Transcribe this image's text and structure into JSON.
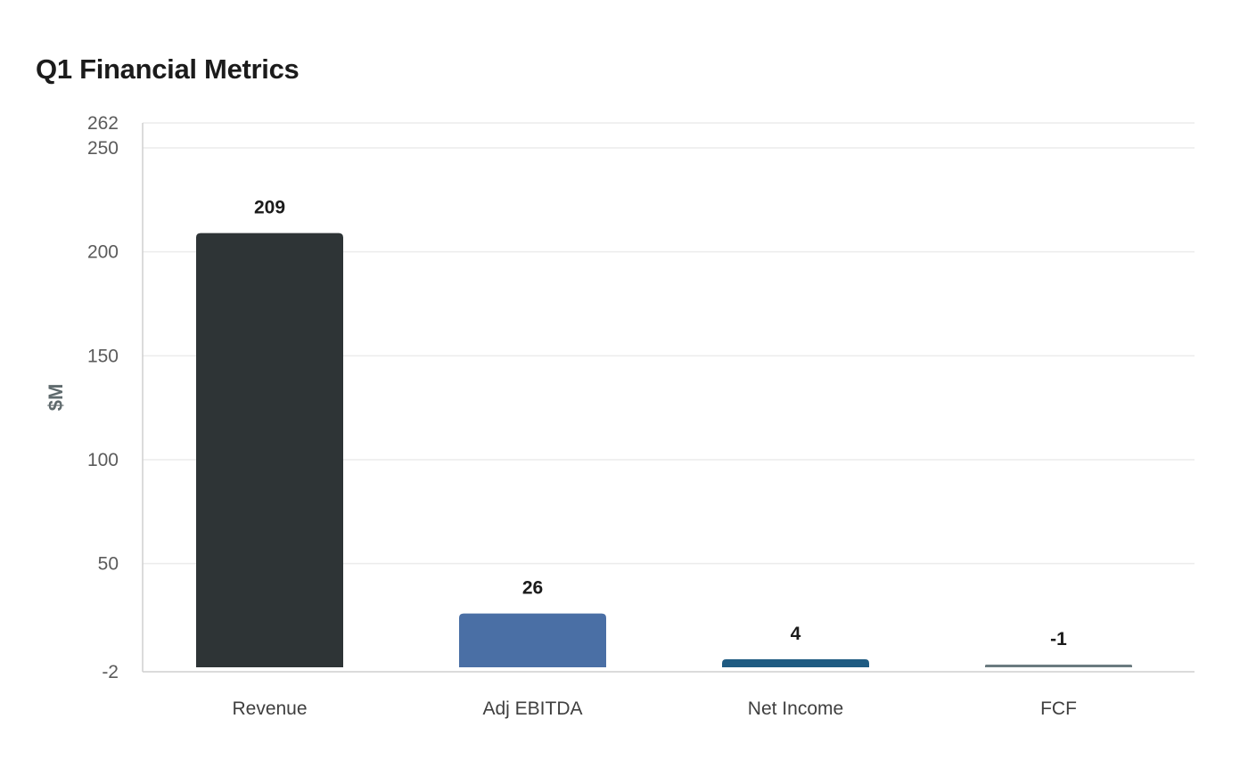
{
  "chart_data": {
    "type": "bar",
    "title": "Q1 Financial Metrics",
    "xlabel": "",
    "ylabel": "$M",
    "categories": [
      "Revenue",
      "Adj EBITDA",
      "Net Income",
      "FCF"
    ],
    "values": [
      209,
      26,
      4,
      -1
    ],
    "data_labels": [
      "209",
      "26",
      "4",
      "-1"
    ],
    "colors": [
      "#2e3436",
      "#4a6fa5",
      "#1f5b82",
      "#6b7b80"
    ],
    "ylim": [
      -2,
      262
    ],
    "yticks": [
      -2,
      50,
      100,
      150,
      200,
      250,
      262
    ],
    "grid": true,
    "legend": "none"
  }
}
